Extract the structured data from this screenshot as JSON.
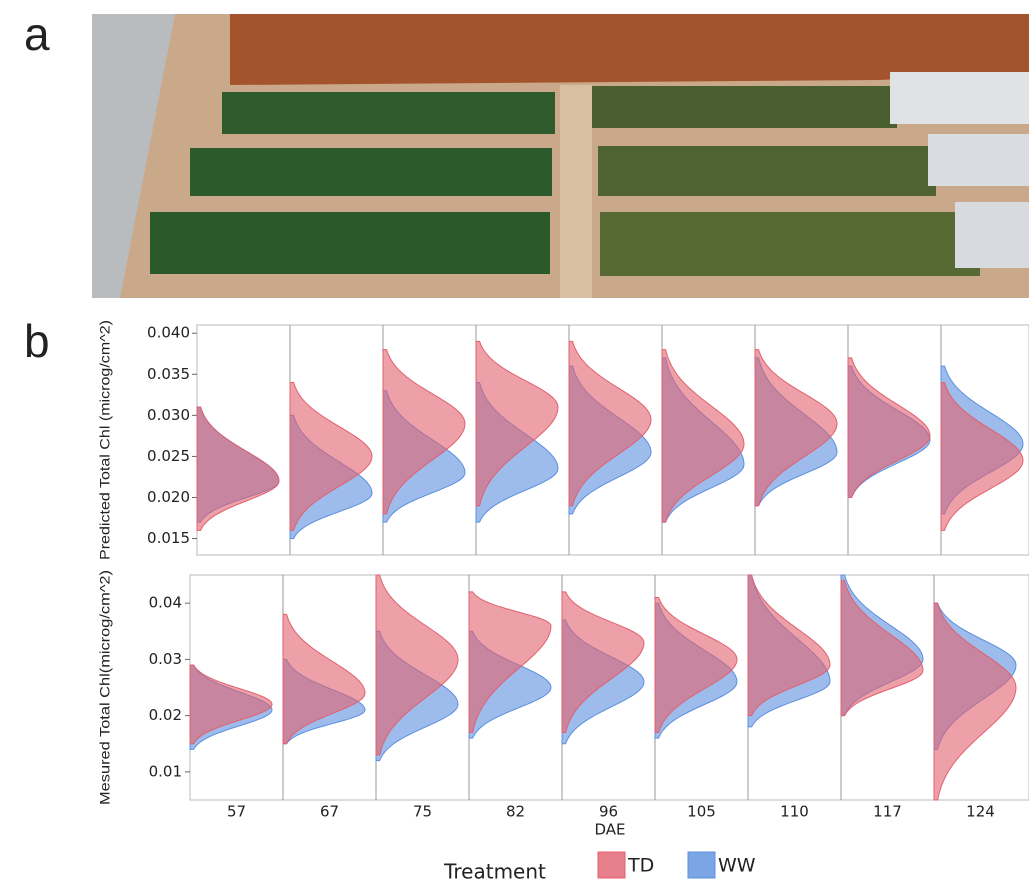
{
  "panel_labels": [
    "a",
    "b"
  ],
  "chart_data": [
    {
      "type": "density",
      "y_label": "Predicted Total Chl (microg/cm^2)",
      "ylim": [
        0.013,
        0.041
      ],
      "yticks": [
        {
          "value": 0.015,
          "label": "0.015"
        },
        {
          "value": 0.02,
          "label": "0.020"
        },
        {
          "value": 0.025,
          "label": "0.025"
        },
        {
          "value": 0.03,
          "label": "0.030"
        },
        {
          "value": 0.035,
          "label": "0.035"
        },
        {
          "value": 0.04,
          "label": "0.040"
        }
      ],
      "series": [
        {
          "color": "#5b8fe0",
          "values": [
            0.022,
            0.0205,
            0.023,
            0.0235,
            0.0255,
            0.024,
            0.0255,
            0.027,
            0.0265
          ],
          "min": [
            0.017,
            0.015,
            0.017,
            0.017,
            0.018,
            0.017,
            0.019,
            0.02,
            0.018
          ],
          "max": [
            0.031,
            0.03,
            0.033,
            0.034,
            0.036,
            0.037,
            0.037,
            0.036,
            0.036
          ]
        },
        {
          "color": "#e2606e",
          "values": [
            0.022,
            0.025,
            0.029,
            0.031,
            0.0295,
            0.0265,
            0.029,
            0.0275,
            0.0245
          ],
          "min": [
            0.016,
            0.016,
            0.018,
            0.019,
            0.019,
            0.017,
            0.019,
            0.02,
            0.016
          ],
          "max": [
            0.031,
            0.034,
            0.038,
            0.039,
            0.039,
            0.038,
            0.038,
            0.037,
            0.034
          ]
        }
      ]
    },
    {
      "type": "density",
      "y_label": "Mesured Total Chl(microg/cm^2)",
      "x_label": "DAE",
      "categories": [
        "57",
        "67",
        "75",
        "82",
        "96",
        "105",
        "110",
        "117",
        "124"
      ],
      "ylim": [
        0.005,
        0.045
      ],
      "yticks": [
        0.01,
        0.02,
        0.03,
        0.04
      ],
      "legend": {
        "title": "Treatment"
      },
      "series": [
        {
          "name": "WW",
          "color": "#5b8fe0",
          "values": [
            0.021,
            0.021,
            0.022,
            0.025,
            0.026,
            0.026,
            0.026,
            0.03,
            0.029
          ],
          "min": [
            0.014,
            0.015,
            0.012,
            0.016,
            0.015,
            0.016,
            0.018,
            0.02,
            0.014
          ],
          "max": [
            0.029,
            0.03,
            0.035,
            0.035,
            0.037,
            0.04,
            0.045,
            0.045,
            0.04
          ]
        },
        {
          "name": "TD",
          "color": "#e2606e",
          "values": [
            0.022,
            0.024,
            0.03,
            0.036,
            0.033,
            0.03,
            0.029,
            0.028,
            0.025
          ],
          "min": [
            0.015,
            0.015,
            0.013,
            0.017,
            0.017,
            0.017,
            0.02,
            0.02,
            0.005
          ],
          "max": [
            0.029,
            0.038,
            0.045,
            0.042,
            0.042,
            0.041,
            0.045,
            0.044,
            0.04
          ]
        }
      ]
    }
  ]
}
